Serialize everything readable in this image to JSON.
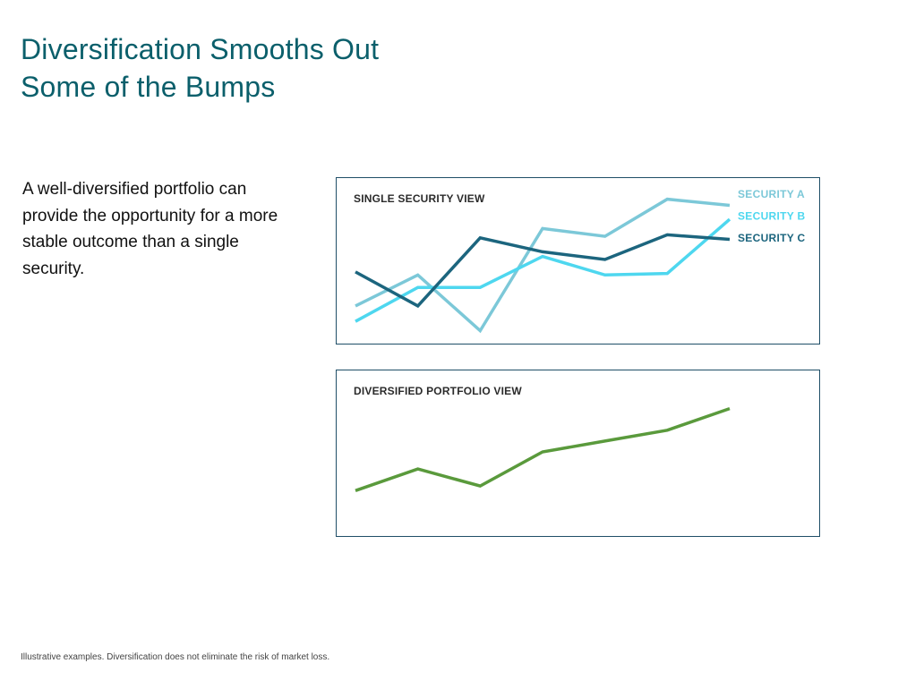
{
  "title": {
    "line1": "Diversification Smooths Out",
    "line2": "Some of the Bumps"
  },
  "body_text": "A well-diversified portfolio can provide the opportunity for a more stable outcome than a single security.",
  "footnote": "Illustrative examples. Diversification  does  not eliminate  the  risk of market loss.",
  "chart_data": [
    {
      "type": "line",
      "title": "SINGLE SECURITY VIEW",
      "xlabel": "",
      "ylabel": "",
      "grid": false,
      "legend_placement": "top-right",
      "x": [
        1,
        2,
        3,
        4,
        5,
        6,
        7
      ],
      "ylim": [
        0,
        100
      ],
      "series": [
        {
          "name": "SECURITY A",
          "color": "#7cc8d8",
          "values": [
            22,
            42,
            6,
            72,
            67,
            91,
            87
          ]
        },
        {
          "name": "SECURITY B",
          "color": "#4ed7ef",
          "values": [
            12,
            34,
            34,
            54,
            42,
            43,
            78
          ]
        },
        {
          "name": "SECURITY C",
          "color": "#1c657e",
          "values": [
            44,
            22,
            66,
            57,
            52,
            68,
            65
          ]
        }
      ]
    },
    {
      "type": "line",
      "title": "DIVERSIFIED PORTFOLIO VIEW",
      "xlabel": "",
      "ylabel": "",
      "grid": false,
      "x": [
        1,
        2,
        3,
        4,
        5,
        6,
        7
      ],
      "ylim": [
        0,
        100
      ],
      "series": [
        {
          "color": "#5a9a3c",
          "values": [
            27,
            41,
            30,
            52,
            59,
            66,
            80
          ]
        }
      ]
    }
  ]
}
